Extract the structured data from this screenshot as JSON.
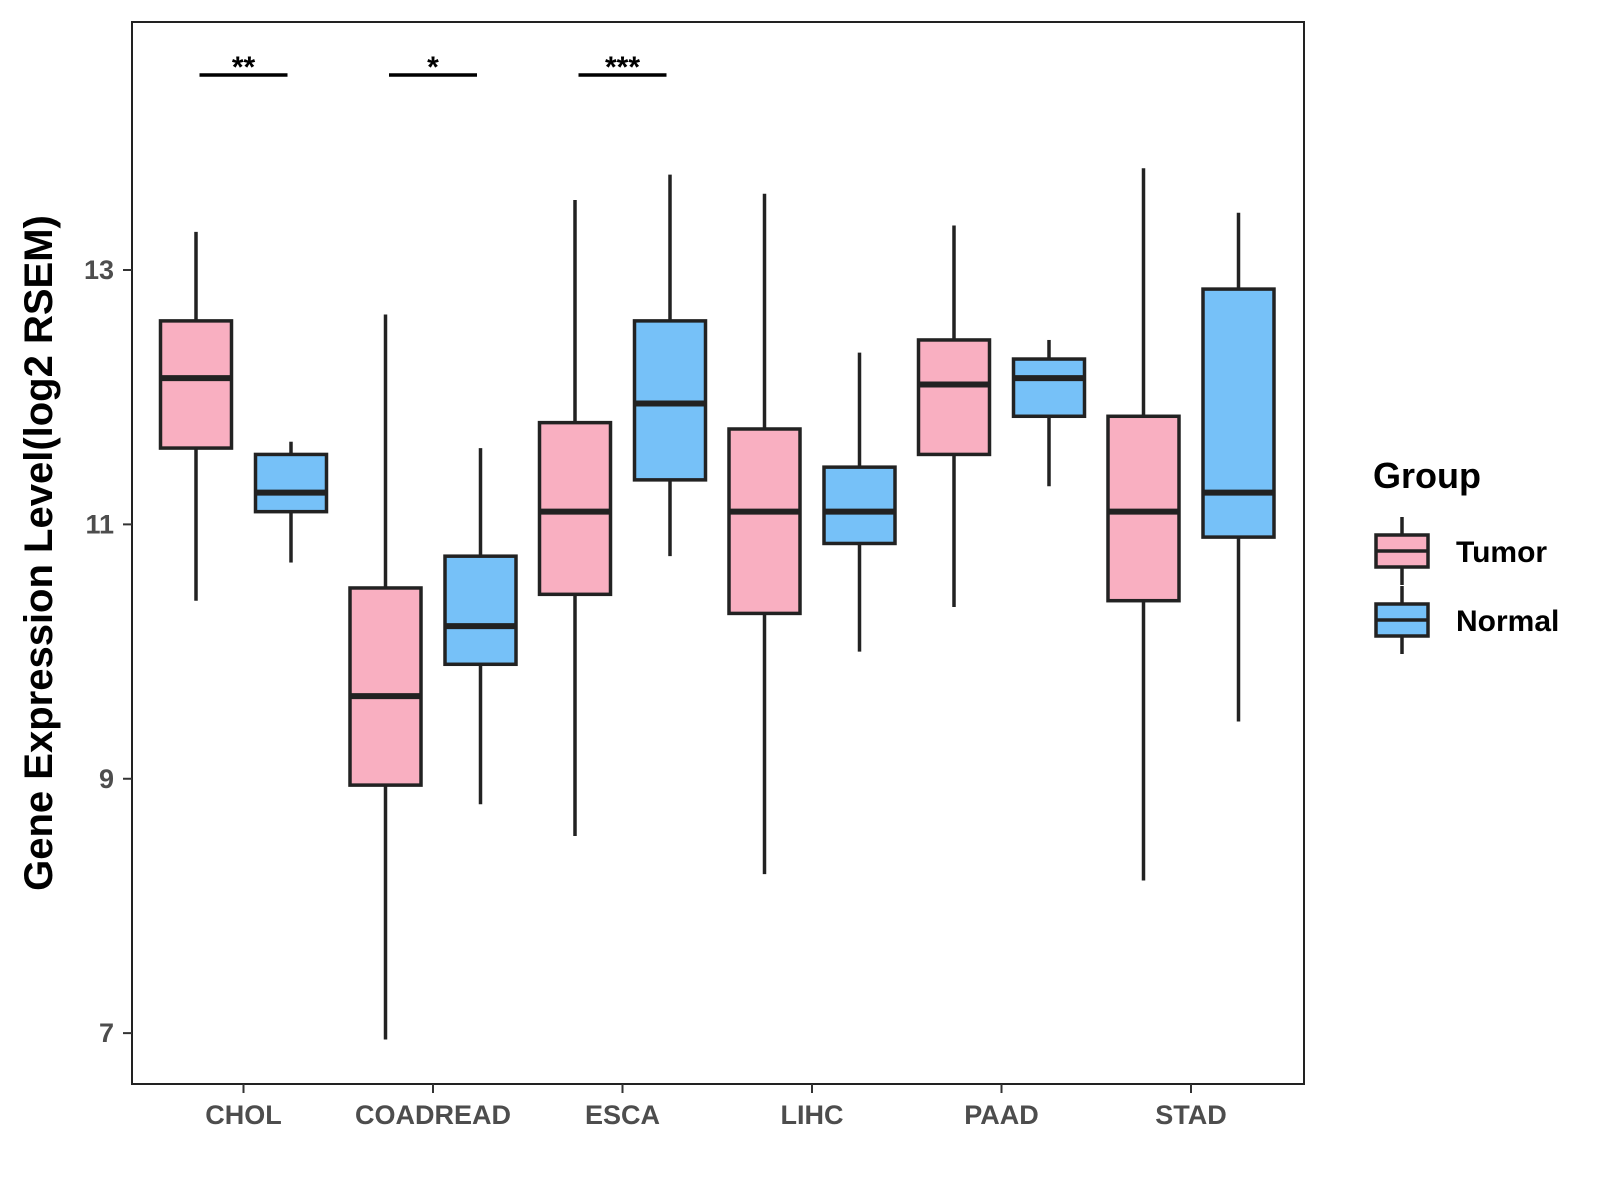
{
  "chart_data": {
    "type": "boxplot",
    "title": "",
    "xlabel": "",
    "ylabel": "Gene Expression Level(log2 RSEM)",
    "ylim": [
      6.6,
      14.95
    ],
    "yticks": [
      7,
      9,
      11,
      13
    ],
    "categories": [
      "CHOL",
      "COADREAD",
      "ESCA",
      "LIHC",
      "PAAD",
      "STAD"
    ],
    "legend": {
      "title": "Group",
      "position": "right"
    },
    "series": [
      {
        "name": "Tumor",
        "color": "#F9AFC1",
        "boxes": [
          {
            "category": "CHOL",
            "min": 10.4,
            "q1": 11.6,
            "median": 12.15,
            "q3": 12.6,
            "max": 13.3
          },
          {
            "category": "COADREAD",
            "min": 6.95,
            "q1": 8.95,
            "median": 9.65,
            "q3": 10.5,
            "max": 12.65
          },
          {
            "category": "ESCA",
            "min": 8.55,
            "q1": 10.45,
            "median": 11.1,
            "q3": 11.8,
            "max": 13.55
          },
          {
            "category": "LIHC",
            "min": 8.25,
            "q1": 10.3,
            "median": 11.1,
            "q3": 11.75,
            "max": 13.6
          },
          {
            "category": "PAAD",
            "min": 10.35,
            "q1": 11.55,
            "median": 12.1,
            "q3": 12.45,
            "max": 13.35
          },
          {
            "category": "STAD",
            "min": 8.2,
            "q1": 10.4,
            "median": 11.1,
            "q3": 11.85,
            "max": 13.8
          }
        ]
      },
      {
        "name": "Normal",
        "color": "#76C1F8",
        "boxes": [
          {
            "category": "CHOL",
            "min": 10.7,
            "q1": 11.1,
            "median": 11.25,
            "q3": 11.55,
            "max": 11.65
          },
          {
            "category": "COADREAD",
            "min": 8.8,
            "q1": 9.9,
            "median": 10.2,
            "q3": 10.75,
            "max": 11.6
          },
          {
            "category": "ESCA",
            "min": 10.75,
            "q1": 11.35,
            "median": 11.95,
            "q3": 12.6,
            "max": 13.75
          },
          {
            "category": "LIHC",
            "min": 10.0,
            "q1": 10.85,
            "median": 11.1,
            "q3": 11.45,
            "max": 12.35
          },
          {
            "category": "PAAD",
            "min": 11.3,
            "q1": 11.85,
            "median": 12.15,
            "q3": 12.3,
            "max": 12.45
          },
          {
            "category": "STAD",
            "min": 9.45,
            "q1": 10.9,
            "median": 11.25,
            "q3": 12.85,
            "max": 13.45
          }
        ]
      }
    ],
    "significance": [
      {
        "category": "CHOL",
        "label": "**"
      },
      {
        "category": "COADREAD",
        "label": "*"
      },
      {
        "category": "ESCA",
        "label": "***"
      }
    ]
  }
}
